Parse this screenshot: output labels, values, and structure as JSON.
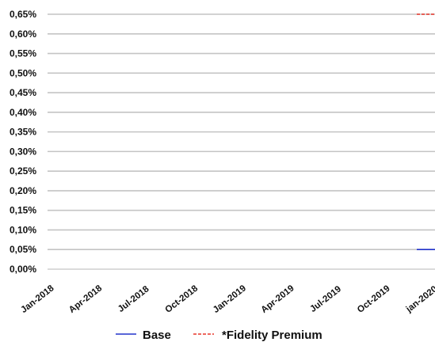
{
  "chart_data": {
    "type": "line",
    "x_categories": [
      "Jan-2018",
      "Apr-2018",
      "Jul-2018",
      "Oct-2018",
      "Jan-2019",
      "Apr-2019",
      "Jul-2019",
      "Oct-2019",
      "jan-2020"
    ],
    "y_tick_labels": [
      "0,00%",
      "0,05%",
      "0,10%",
      "0,15%",
      "0,20%",
      "0,25%",
      "0,30%",
      "0,35%",
      "0,40%",
      "0,45%",
      "0,50%",
      "0,55%",
      "0,60%",
      "0,65%"
    ],
    "ylim": [
      0,
      0.65
    ],
    "grid": true,
    "legend_position": "bottom",
    "series": [
      {
        "name": "Base",
        "color": "#2233cc",
        "line_style": "solid",
        "points": [
          {
            "x": "jan-2020",
            "y": 0.05
          }
        ]
      },
      {
        "name": "*Fidelity Premium",
        "color": "#e8362a",
        "line_style": "dashed",
        "points": [
          {
            "x": "jan-2020",
            "y": 0.65
          }
        ]
      }
    ]
  }
}
